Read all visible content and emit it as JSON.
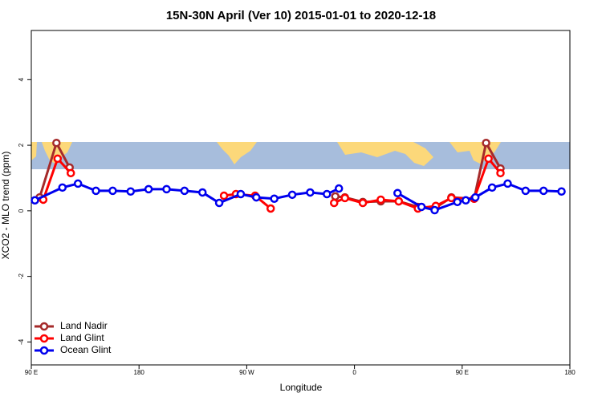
{
  "chart_data": {
    "type": "line",
    "title": "15N-30N April (Ver 10)   2015-01-01 to 2020-12-18",
    "x_label": "Longitude",
    "y_label": "XCO2 - MLO trend (ppm)",
    "xlim": [
      90,
      540
    ],
    "xticks": [
      {
        "value": 90,
        "label": "90 E"
      },
      {
        "value": 180,
        "label": "180"
      },
      {
        "value": 270,
        "label": "90 W"
      },
      {
        "value": 360,
        "label": "0"
      },
      {
        "value": 450,
        "label": "90 E"
      },
      {
        "value": 540,
        "label": "180"
      }
    ],
    "ylim": [
      -4.7,
      5.5
    ],
    "yticks": [
      -4,
      -2,
      0,
      2,
      4
    ],
    "legend": "bottom-left",
    "series": [
      {
        "name": "Land Nadir",
        "color": "#a52a2a",
        "x": [
          97,
          111,
          122,
          null,
          344,
          352,
          367,
          382,
          397,
          413,
          428,
          441,
          460,
          470,
          482
        ],
        "values": [
          0.41,
          2.07,
          1.32,
          null,
          0.44,
          0.41,
          0.27,
          0.29,
          0.29,
          0.12,
          0.1,
          0.41,
          0.37,
          2.07,
          1.29
        ]
      },
      {
        "name": "Land Glint",
        "color": "#ff0000",
        "x": [
          100,
          112,
          123,
          null,
          251,
          261,
          277,
          290,
          null,
          343,
          352,
          367,
          382,
          397,
          413,
          428,
          441,
          460,
          472,
          482
        ],
        "values": [
          0.34,
          1.59,
          1.15,
          null,
          0.46,
          0.51,
          0.46,
          0.07,
          null,
          0.24,
          0.39,
          0.24,
          0.34,
          0.29,
          0.07,
          0.15,
          0.39,
          0.37,
          1.59,
          1.15
        ]
      },
      {
        "name": "Ocean Glint",
        "color": "#0000ee",
        "x": [
          93,
          116,
          129,
          144,
          158,
          173,
          188,
          203,
          218,
          233,
          247,
          265,
          278,
          293,
          308,
          323,
          337,
          347,
          null,
          396,
          416,
          427,
          446,
          453,
          461,
          475,
          488,
          503,
          518,
          533
        ],
        "values": [
          0.32,
          0.71,
          0.83,
          0.61,
          0.61,
          0.59,
          0.66,
          0.66,
          0.61,
          0.56,
          0.24,
          0.51,
          0.41,
          0.37,
          0.49,
          0.56,
          0.51,
          0.68,
          null,
          0.54,
          0.12,
          0.02,
          0.27,
          0.32,
          0.41,
          0.71,
          0.83,
          0.61,
          0.61,
          0.59
        ]
      }
    ]
  }
}
